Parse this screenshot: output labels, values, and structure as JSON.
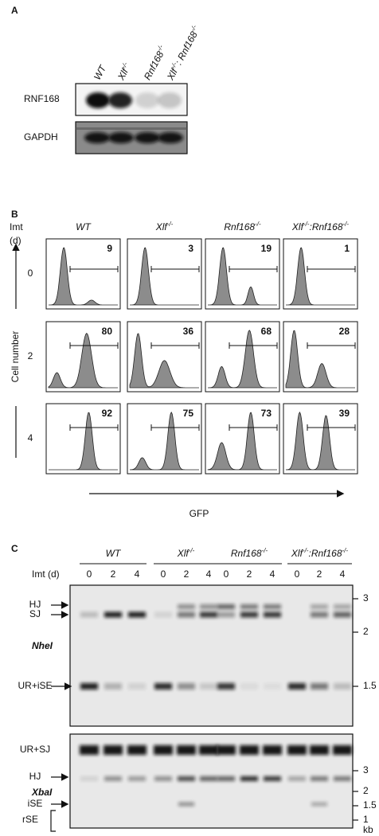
{
  "panel_a": {
    "label": "A",
    "genotypes": [
      [
        {
          "main": "WT"
        }
      ],
      [
        {
          "main": "Xlf",
          "sup": "-/-"
        }
      ],
      [
        {
          "main": "Rnf168",
          "sup": "-/-"
        }
      ],
      [
        {
          "main": "Xlf",
          "sup": "-/-"
        },
        {
          "main": ": Rnf168",
          "sup": "-/-"
        }
      ]
    ],
    "blots": [
      "RNF168",
      "GAPDH"
    ]
  },
  "panel_b": {
    "label": "B",
    "imt": "Imt",
    "imt_unit": "(d)",
    "genotypes": [
      [
        {
          "main": "WT"
        }
      ],
      [
        {
          "main": "Xlf",
          "sup": "-/-"
        }
      ],
      [
        {
          "main": "Rnf168",
          "sup": "-/-"
        }
      ],
      [
        {
          "main": "Xlf",
          "sup": "-/-"
        },
        {
          "main": ":Rnf168",
          "sup": "-/-"
        }
      ]
    ],
    "days": [
      "0",
      "2",
      "4"
    ],
    "gfp_percent": [
      [
        9,
        3,
        19,
        1
      ],
      [
        80,
        36,
        68,
        28
      ],
      [
        92,
        75,
        73,
        39
      ]
    ],
    "y_axis": "Cell number",
    "x_axis": "GFP"
  },
  "panel_c": {
    "label": "C",
    "imt": "Imt (d)",
    "genotypes": [
      [
        {
          "main": "WT"
        }
      ],
      [
        {
          "main": "Xlf",
          "sup": "-/-"
        }
      ],
      [
        {
          "main": "Rnf168",
          "sup": "-/-"
        }
      ],
      [
        {
          "main": "Xlf",
          "sup": "-/-"
        },
        {
          "main": ":Rnf168",
          "sup": "-/-"
        }
      ]
    ],
    "lanes": [
      0,
      2,
      4
    ],
    "nhei": {
      "enzyme": "NheI",
      "bands": [
        "HJ",
        "SJ",
        "UR+iSE"
      ],
      "sizes": [
        3,
        2,
        1.5
      ]
    },
    "xbai": {
      "enzyme": "XbaI",
      "bands": [
        "UR+SJ",
        "HJ",
        "iSE",
        "rSE"
      ],
      "sizes": [
        3,
        2,
        1.5,
        1
      ],
      "unit": "kb"
    }
  }
}
